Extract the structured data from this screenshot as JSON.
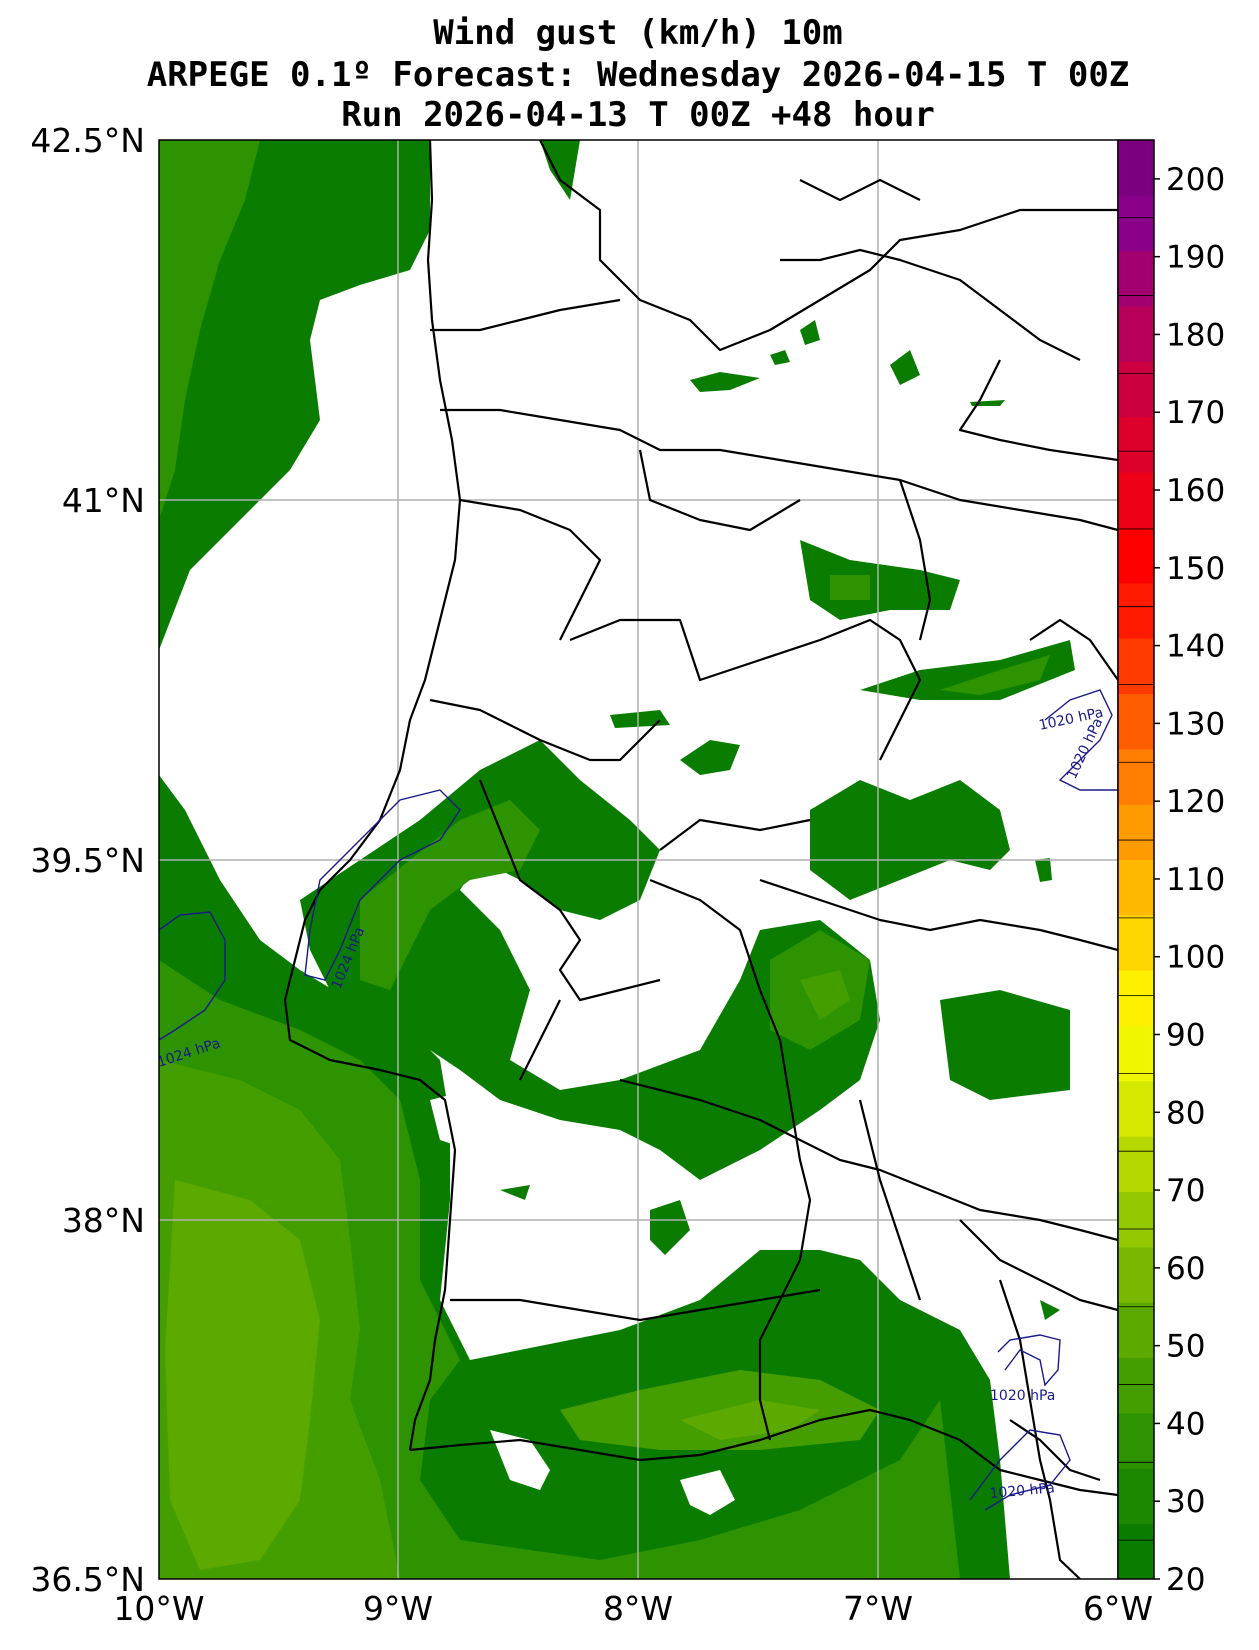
{
  "title": {
    "line1": "Wind gust (km/h) 10m",
    "line2": "ARPEGE 0.1º Forecast: Wednesday 2026-04-15 T 00Z",
    "line3": "Run 2026-04-13 T 00Z +48 hour"
  },
  "map": {
    "lon_range": [
      -10,
      -6
    ],
    "lat_range": [
      36.5,
      42.5
    ],
    "lon_ticks": [
      "10°W",
      "9°W",
      "8°W",
      "7°W",
      "6°W"
    ],
    "lat_ticks": [
      "42.5°N",
      "41°N",
      "39.5°N",
      "38°N",
      "36.5°N"
    ],
    "grid": true,
    "isobar_labels": [
      "1020 hPa",
      "1020 hPa",
      "1024 hPa",
      "1024 hPa",
      "1020 hPa",
      "1020 hPa"
    ]
  },
  "colorbar": {
    "min": 20,
    "max": 205,
    "tick_labels": [
      "20",
      "30",
      "40",
      "50",
      "60",
      "70",
      "80",
      "90",
      "100",
      "110",
      "120",
      "130",
      "140",
      "150",
      "160",
      "170",
      "180",
      "190",
      "200"
    ],
    "colors": [
      "#0a7d00",
      "#1c8800",
      "#2d9300",
      "#459e00",
      "#5ca900",
      "#78b800",
      "#94c800",
      "#b5d800",
      "#d4e800",
      "#f0f500",
      "#fff000",
      "#ffd700",
      "#ffb800",
      "#ff9a00",
      "#ff7d00",
      "#ff5c00",
      "#ff3a00",
      "#ff1a00",
      "#ff0000",
      "#ee0016",
      "#dd002a",
      "#cc0040",
      "#b8005a",
      "#a20070",
      "#8a0088",
      "#7a0080"
    ],
    "color_reference": {
      "low": "#0a7d00",
      "mid": "#ffff00",
      "high": "#800080"
    }
  }
}
